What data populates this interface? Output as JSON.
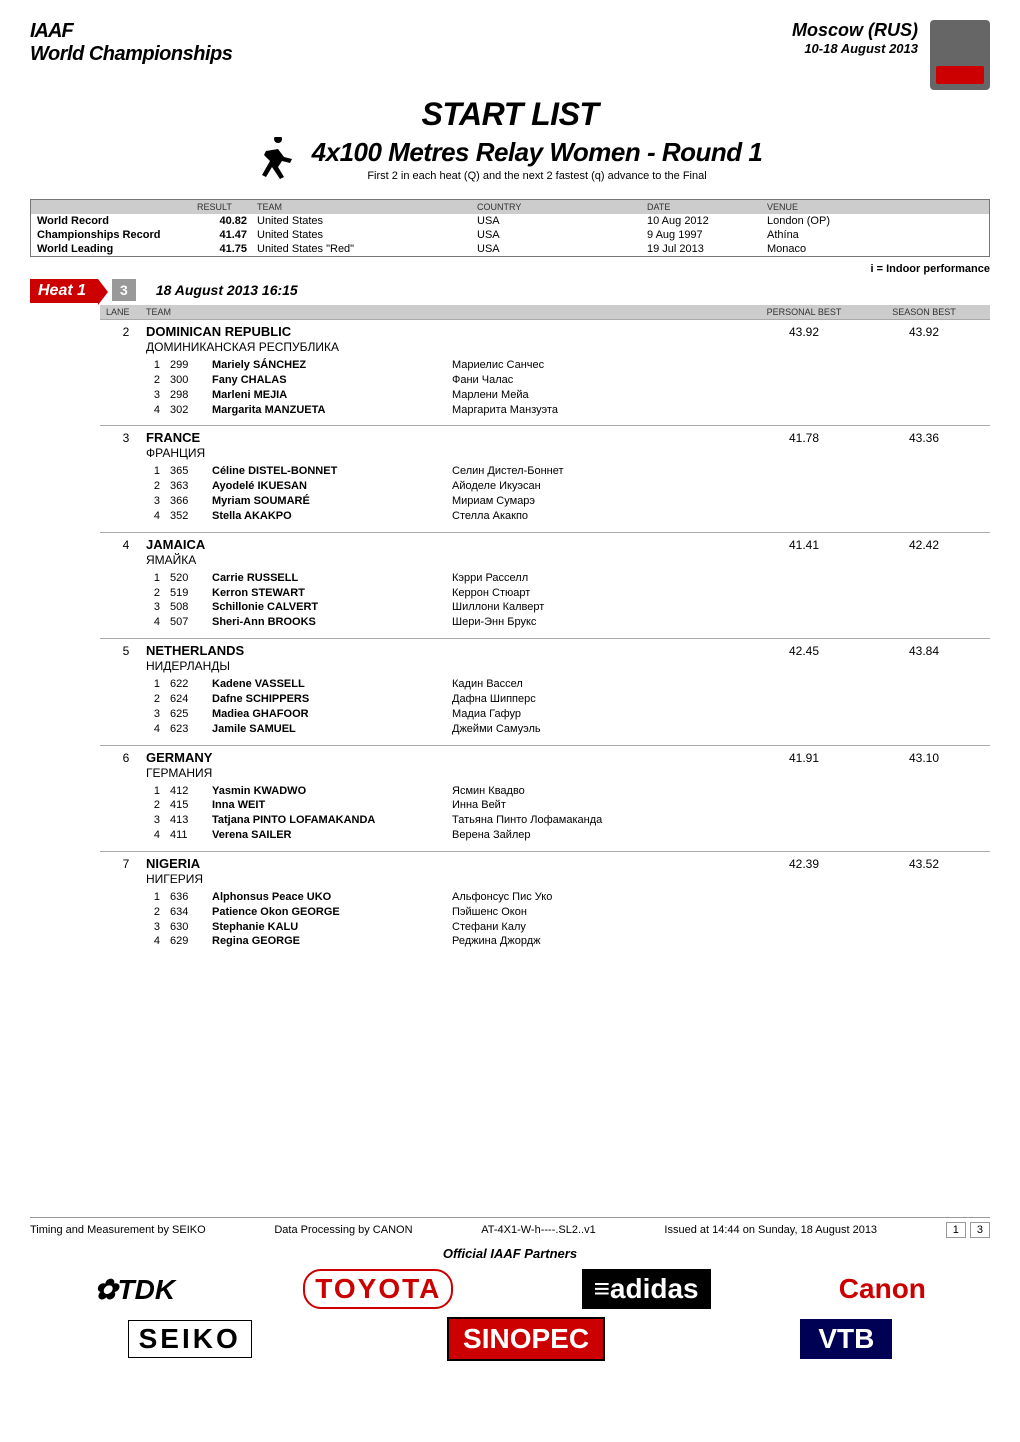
{
  "header": {
    "fed": "IAAF",
    "champ": "World Championships",
    "city": "Moscow (RUS)",
    "dates": "10-18 August 2013"
  },
  "title": {
    "startlist": "START LIST",
    "event": "4x100 Metres Relay Women - Round 1",
    "subtitle": "First 2 in each heat (Q) and the next 2 fastest (q) advance to the Final"
  },
  "records_hdr": {
    "result": "RESULT",
    "team": "TEAM",
    "country": "COUNTRY",
    "date": "DATE",
    "venue": "VENUE"
  },
  "records": [
    {
      "label": "World Record",
      "mark": "40.82",
      "team": "United States",
      "country": "USA",
      "date": "10 Aug 2012",
      "venue": "London (OP)"
    },
    {
      "label": "Championships Record",
      "mark": "41.47",
      "team": "United States",
      "country": "USA",
      "date": "9 Aug 1997",
      "venue": "Athína"
    },
    {
      "label": "World Leading",
      "mark": "41.75",
      "team": "United States \"Red\"",
      "country": "USA",
      "date": "19 Jul 2013",
      "venue": "Monaco"
    }
  ],
  "legend": "i = Indoor performance",
  "heat": {
    "label": "Heat 1",
    "count": "3",
    "datetime": "18 August 2013   16:15"
  },
  "entries_hdr": {
    "lane": "LANE",
    "team": "TEAM",
    "pb": "PERSONAL BEST",
    "sb": "SEASON BEST"
  },
  "countries": [
    {
      "lane": "2",
      "name": "DOMINICAN REPUBLIC",
      "local": "ДОМИНИКАНСКАЯ РЕСПУБЛИКА",
      "pb": "43.92",
      "sb": "43.92",
      "athletes": [
        {
          "order": "1",
          "bib": "299",
          "first": "Mariely",
          "last": "SÁNCHEZ",
          "local": "Мариелис Санчес"
        },
        {
          "order": "2",
          "bib": "300",
          "first": "Fany",
          "last": "CHALAS",
          "local": "Фани Чалас"
        },
        {
          "order": "3",
          "bib": "298",
          "first": "Marleni",
          "last": "MEJIA",
          "local": "Марлени Мейа"
        },
        {
          "order": "4",
          "bib": "302",
          "first": "Margarita",
          "last": "MANZUETA",
          "local": "Маргарита Манзуэта"
        }
      ]
    },
    {
      "lane": "3",
      "name": "FRANCE",
      "local": "ФРАНЦИЯ",
      "pb": "41.78",
      "sb": "43.36",
      "athletes": [
        {
          "order": "1",
          "bib": "365",
          "first": "Céline",
          "last": "DISTEL-BONNET",
          "local": "Селин Дистел-Боннет"
        },
        {
          "order": "2",
          "bib": "363",
          "first": "Ayodelé",
          "last": "IKUESAN",
          "local": "Айоделе Икуэсан"
        },
        {
          "order": "3",
          "bib": "366",
          "first": "Myriam",
          "last": "SOUMARÉ",
          "local": "Мириам Сумарэ"
        },
        {
          "order": "4",
          "bib": "352",
          "first": "Stella",
          "last": "AKAKPO",
          "local": "Стелла Акакпо"
        }
      ]
    },
    {
      "lane": "4",
      "name": "JAMAICA",
      "local": "ЯМАЙКА",
      "pb": "41.41",
      "sb": "42.42",
      "athletes": [
        {
          "order": "1",
          "bib": "520",
          "first": "Carrie",
          "last": "RUSSELL",
          "local": "Кэрри Расселл"
        },
        {
          "order": "2",
          "bib": "519",
          "first": "Kerron",
          "last": "STEWART",
          "local": "Керрон Стюарт"
        },
        {
          "order": "3",
          "bib": "508",
          "first": "Schillonie",
          "last": "CALVERT",
          "local": "Шиллони Калверт"
        },
        {
          "order": "4",
          "bib": "507",
          "first": "Sheri-Ann",
          "last": "BROOKS",
          "local": "Шери-Энн Брукс"
        }
      ]
    },
    {
      "lane": "5",
      "name": "NETHERLANDS",
      "local": "НИДЕРЛАНДЫ",
      "pb": "42.45",
      "sb": "43.84",
      "athletes": [
        {
          "order": "1",
          "bib": "622",
          "first": "Kadene",
          "last": "VASSELL",
          "local": "Кадин Вассел"
        },
        {
          "order": "2",
          "bib": "624",
          "first": "Dafne",
          "last": "SCHIPPERS",
          "local": "Дафна Шипперс"
        },
        {
          "order": "3",
          "bib": "625",
          "first": "Madiea",
          "last": "GHAFOOR",
          "local": "Мадиа Гафур"
        },
        {
          "order": "4",
          "bib": "623",
          "first": "Jamile",
          "last": "SAMUEL",
          "local": "Джейми Самуэль"
        }
      ]
    },
    {
      "lane": "6",
      "name": "GERMANY",
      "local": "ГЕРМАНИЯ",
      "pb": "41.91",
      "sb": "43.10",
      "athletes": [
        {
          "order": "1",
          "bib": "412",
          "first": "Yasmin",
          "last": "KWADWO",
          "local": "Ясмин Квадво"
        },
        {
          "order": "2",
          "bib": "415",
          "first": "Inna",
          "last": "WEIT",
          "local": "Инна Вейт"
        },
        {
          "order": "3",
          "bib": "413",
          "first": "Tatjana",
          "last": "PINTO LOFAMAKANDA",
          "local": "Татьяна Пинто Лофамаканда"
        },
        {
          "order": "4",
          "bib": "411",
          "first": "Verena",
          "last": "SAILER",
          "local": "Верена Зайлер"
        }
      ]
    },
    {
      "lane": "7",
      "name": "NIGERIA",
      "local": "НИГЕРИЯ",
      "pb": "42.39",
      "sb": "43.52",
      "athletes": [
        {
          "order": "1",
          "bib": "636",
          "first": "Alphonsus Peace",
          "last": "UKO",
          "local": "Альфонсус Пис Уко"
        },
        {
          "order": "2",
          "bib": "634",
          "first": "Patience Okon",
          "last": "GEORGE",
          "local": "Пэйшенс Окон"
        },
        {
          "order": "3",
          "bib": "630",
          "first": "Stephanie",
          "last": "KALU",
          "local": "Стефани Калу"
        },
        {
          "order": "4",
          "bib": "629",
          "first": "Regina",
          "last": "GEORGE",
          "local": "Реджина Джордж"
        }
      ]
    }
  ],
  "footer": {
    "timing": "Timing and Measurement by SEIKO",
    "data": "Data Processing by CANON",
    "code": "AT-4X1-W-h----.SL2..v1",
    "issued": "Issued at 14:44 on Sunday, 18 August 2013",
    "page_cur": "1",
    "page_total": "3",
    "partners": "Official IAAF Partners"
  },
  "sponsors": {
    "tdk": "✿TDK",
    "toyota": "TOYOTA",
    "adidas": "≡adidas",
    "canon": "Canon",
    "seiko": "SEIKO",
    "sinopec": "SINOPEC",
    "vtb": "VTB"
  }
}
